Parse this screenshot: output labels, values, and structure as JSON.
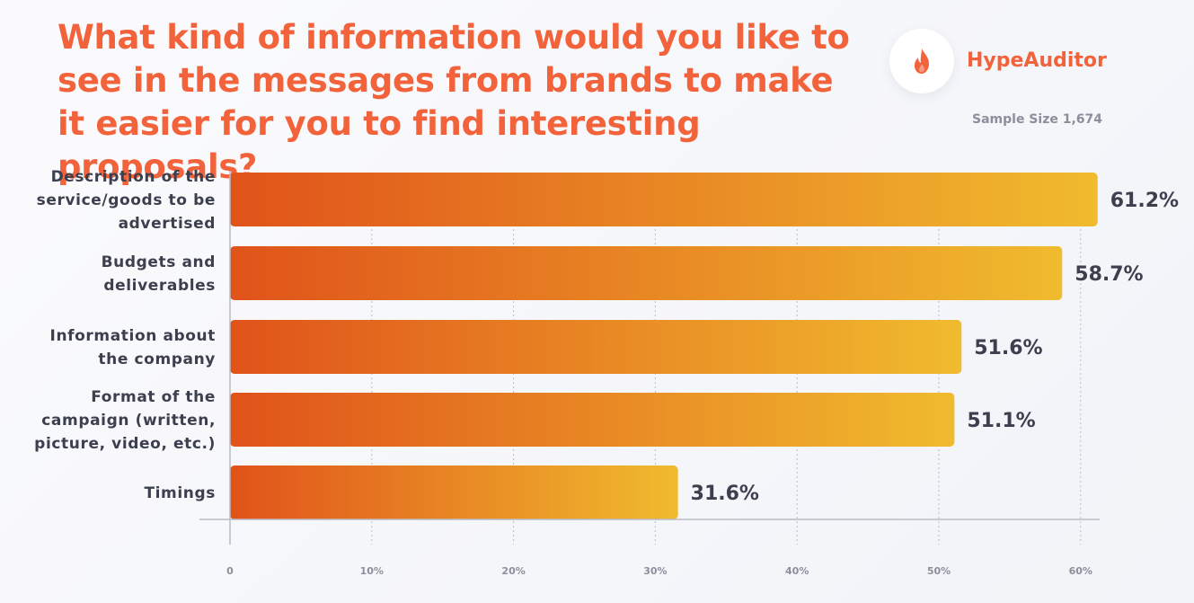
{
  "header": {
    "title": "What kind of information would you like to see in the messages from brands to make it easier for you to find interesting proposals?",
    "brand": "HypeAuditor",
    "sample_size": "Sample Size 1,674",
    "logo_icon": "flame-icon"
  },
  "colors": {
    "accent": "#f2633c",
    "bar_start": "#e0531a",
    "bar_end": "#f0bb2e",
    "text": "#3b3f4e",
    "muted": "#8a8f9b"
  },
  "chart_data": {
    "type": "bar",
    "orientation": "horizontal",
    "categories": [
      [
        "Description of the",
        "service/goods to be",
        "advertised"
      ],
      [
        "Budgets and",
        "deliverables"
      ],
      [
        "Information about",
        "the company"
      ],
      [
        "Format of the",
        "campaign (written,",
        "picture, video, etc.)"
      ],
      [
        "Timings"
      ]
    ],
    "values": [
      61.2,
      58.7,
      51.6,
      51.1,
      31.6
    ],
    "value_labels": [
      "61.2%",
      "58.7%",
      "51.6%",
      "51.1%",
      "31.6%"
    ],
    "xticks": [
      "0",
      "10%",
      "20%",
      "30%",
      "40%",
      "50%",
      "60%"
    ],
    "xlim": [
      0,
      60
    ],
    "grid": true
  }
}
